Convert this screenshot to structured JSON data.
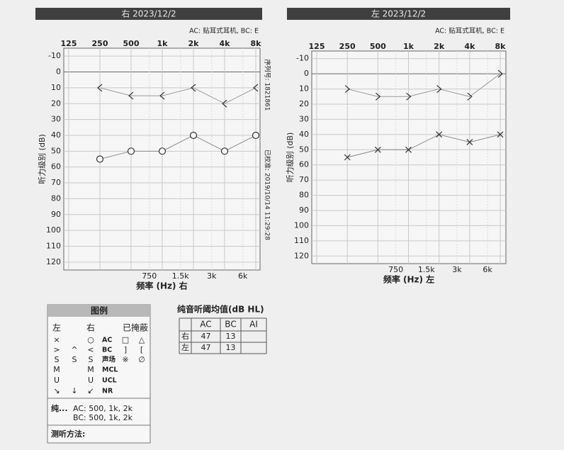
{
  "chart_data": [
    {
      "type": "line",
      "title": "右 2023/12/2",
      "note": "AC: 贴耳式耳机, BC: E",
      "serial": "序列号: 1821861",
      "calibrated": "已校准: 2019/10/14 11:29:28",
      "xlabel": "频率 (Hz) 右",
      "ylabel": "听力级别 (dB)",
      "xscale": "log",
      "y_reversed": true,
      "grid": true,
      "xlim": [
        125,
        8000
      ],
      "ylim": [
        -15,
        125
      ],
      "xticks": [
        125,
        250,
        500,
        {
          "value": 1000,
          "label": "1k"
        },
        {
          "value": 2000,
          "label": "2k"
        },
        {
          "value": 4000,
          "label": "4k"
        },
        {
          "value": 8000,
          "label": "8k"
        }
      ],
      "xticks_bottom": [
        750,
        {
          "value": 1500,
          "label": "1.5k"
        },
        {
          "value": 3000,
          "label": "3k"
        },
        {
          "value": 6000,
          "label": "6k"
        }
      ],
      "yticks": [
        -10,
        0,
        10,
        20,
        30,
        40,
        50,
        60,
        70,
        80,
        90,
        100,
        110,
        120
      ],
      "x": [
        250,
        500,
        1000,
        2000,
        4000,
        8000
      ],
      "series": [
        {
          "name": "AC",
          "color": "#333333",
          "line_color": "#8a8a8a",
          "marker": "circle",
          "values": [
            55,
            50,
            50,
            40,
            50,
            40
          ]
        },
        {
          "name": "BC",
          "color": "#333333",
          "line_color": "#9a9a9a",
          "marker": "less",
          "values": [
            10,
            15,
            15,
            10,
            20,
            10
          ]
        }
      ]
    },
    {
      "type": "line",
      "title": "左 2023/12/2",
      "note": "AC: 贴耳式耳机, BC: E",
      "xlabel": "频率 (Hz) 左",
      "ylabel": "听力级别 (dB)",
      "xscale": "log",
      "y_reversed": true,
      "grid": true,
      "xlim": [
        125,
        8000
      ],
      "ylim": [
        -15,
        125
      ],
      "xticks": [
        125,
        250,
        500,
        {
          "value": 1000,
          "label": "1k"
        },
        {
          "value": 2000,
          "label": "2k"
        },
        {
          "value": 4000,
          "label": "4k"
        },
        {
          "value": 8000,
          "label": "8k"
        }
      ],
      "xticks_bottom": [
        750,
        {
          "value": 1500,
          "label": "1.5k"
        },
        {
          "value": 3000,
          "label": "3k"
        },
        {
          "value": 6000,
          "label": "6k"
        }
      ],
      "yticks": [
        -10,
        0,
        10,
        20,
        30,
        40,
        50,
        60,
        70,
        80,
        90,
        100,
        110,
        120
      ],
      "x": [
        250,
        500,
        1000,
        2000,
        4000,
        8000
      ],
      "series": [
        {
          "name": "AC",
          "color": "#333333",
          "line_color": "#8a8a8a",
          "marker": "cross",
          "values": [
            55,
            50,
            50,
            40,
            45,
            40
          ]
        },
        {
          "name": "BC",
          "color": "#333333",
          "line_color": "#9a9a9a",
          "marker": "greater",
          "values": [
            10,
            15,
            15,
            10,
            15,
            0
          ]
        }
      ]
    }
  ],
  "legend": {
    "title": "图例",
    "header": [
      "左",
      "右",
      "已掩蔽"
    ],
    "rows": [
      {
        "left": "×",
        "right": "○",
        "masked": [
          "□",
          "△"
        ]
      },
      {
        "left": ">",
        "both": "^",
        "right": "<",
        "masked": [
          "]",
          "["
        ]
      },
      {
        "left": "S",
        "both": "S",
        "right": "S",
        "label": "声场",
        "masked": [
          "※",
          "∅"
        ]
      },
      {
        "left": "M",
        "right": "M",
        "label": "MCL"
      },
      {
        "left": "U",
        "right": "U",
        "label": "UCL"
      },
      {
        "left": "↘",
        "both": "↓",
        "right": "↙",
        "label": "NR"
      }
    ],
    "footer": {
      "label": "纯...",
      "ac": "AC: 500, 1k, 2k",
      "bc": "BC: 500, 1k, 2k",
      "method": "测听方法:"
    }
  },
  "pta": {
    "title": "纯音听阈均值(dB HL)",
    "header": [
      "AI"
    ],
    "rows": [
      {
        "ear": "右",
        "values": [
          47,
          13
        ]
      },
      {
        "ear": "左",
        "values": [
          47,
          13
        ]
      }
    ]
  }
}
